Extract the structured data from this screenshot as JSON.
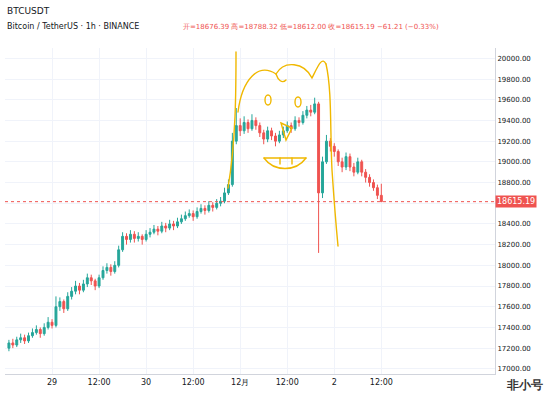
{
  "chart_data": {
    "type": "candlestick",
    "symbol": "BTCUSDT",
    "title": "Bitcoin / TetherUS · 1h · BINANCE",
    "subtitle": "开=18676.39 高=18788.32 低=18612.00 收=18615.19 −61.21 (−0.33%)",
    "watermark": "非小号",
    "categories": [
      null,
      null,
      null,
      null,
      null,
      null,
      null,
      null,
      null,
      null,
      null,
      "29",
      null,
      null,
      null,
      null,
      null,
      null,
      null,
      null,
      null,
      null,
      null,
      "12:00",
      null,
      null,
      null,
      null,
      null,
      null,
      null,
      null,
      null,
      null,
      null,
      "30",
      null,
      null,
      null,
      null,
      null,
      null,
      null,
      null,
      null,
      null,
      null,
      "12:00",
      null,
      null,
      null,
      null,
      null,
      null,
      null,
      null,
      null,
      null,
      null,
      "12月",
      null,
      null,
      null,
      null,
      null,
      null,
      null,
      null,
      null,
      null,
      null,
      "12:00",
      null,
      null,
      null,
      null,
      null,
      null,
      null,
      null,
      null,
      null,
      null,
      "2",
      null,
      null,
      null,
      null,
      null,
      null,
      null,
      null,
      null,
      null,
      null,
      "12:00"
    ],
    "open": [
      17200,
      17250,
      17230,
      17280,
      17300,
      17270,
      17320,
      17350,
      17380,
      17340,
      17400,
      17450,
      17420,
      17600,
      17650,
      17580,
      17700,
      17750,
      17800,
      17760,
      17820,
      17880,
      17850,
      17800,
      17880,
      17950,
      17980,
      17940,
      18000,
      18150,
      18280,
      18250,
      18300,
      18260,
      18280,
      18250,
      18300,
      18320,
      18350,
      18330,
      18380,
      18360,
      18400,
      18380,
      18420,
      18450,
      18480,
      18500,
      18470,
      18520,
      18550,
      18530,
      18580,
      18560,
      18600,
      18620,
      18700,
      18780,
      19200,
      19350,
      19300,
      19380,
      19320,
      19400,
      19350,
      19280,
      19220,
      19300,
      19250,
      19200,
      19260,
      19300,
      19350,
      19320,
      19400,
      19380,
      19450,
      19500,
      19480,
      19560,
      18700,
      19000,
      19200,
      19150,
      19100,
      19000,
      18950,
      19050,
      18950,
      18900,
      19000,
      18900,
      18850,
      18800,
      18750,
      18676.39
    ],
    "high": [
      17280,
      17290,
      17310,
      17340,
      17330,
      17350,
      17390,
      17420,
      17400,
      17440,
      17500,
      17480,
      17700,
      17690,
      17670,
      17740,
      17790,
      17850,
      17830,
      17860,
      17920,
      17910,
      17870,
      17910,
      17990,
      18020,
      18010,
      18040,
      18190,
      18320,
      18310,
      18340,
      18330,
      18320,
      18300,
      18340,
      18360,
      18390,
      18380,
      18420,
      18410,
      18440,
      18430,
      18460,
      18490,
      18520,
      18540,
      18530,
      18560,
      18590,
      18580,
      18620,
      18610,
      18640,
      18660,
      18750,
      18830,
      19280,
      19520,
      19420,
      19440,
      19410,
      19460,
      19430,
      19380,
      19310,
      19340,
      19330,
      19280,
      19300,
      19340,
      19390,
      19380,
      19440,
      19430,
      19490,
      19540,
      19550,
      19620,
      19580,
      19050,
      19260,
      19230,
      19180,
      19120,
      19040,
      19090,
      19080,
      18990,
      19040,
      19020,
      18930,
      18880,
      18830,
      18780,
      18788.32
    ],
    "low": [
      17170,
      17200,
      17210,
      17250,
      17240,
      17250,
      17300,
      17330,
      17300,
      17320,
      17380,
      17390,
      17400,
      17560,
      17540,
      17560,
      17670,
      17720,
      17720,
      17740,
      17790,
      17810,
      17760,
      17780,
      17860,
      17920,
      17900,
      17920,
      17980,
      18130,
      18200,
      18220,
      18220,
      18230,
      18200,
      18230,
      18270,
      18300,
      18290,
      18310,
      18320,
      18340,
      18340,
      18360,
      18400,
      18430,
      18460,
      18430,
      18450,
      18500,
      18490,
      18510,
      18520,
      18540,
      18570,
      18600,
      18680,
      18760,
      19170,
      19250,
      19270,
      19280,
      19300,
      19310,
      19240,
      19170,
      19190,
      19210,
      19150,
      19180,
      19230,
      19280,
      19280,
      19300,
      19340,
      19360,
      19420,
      19440,
      19460,
      18120,
      18650,
      18980,
      19100,
      19050,
      18960,
      18900,
      18920,
      18910,
      18860,
      18880,
      18860,
      18800,
      18760,
      18720,
      18640,
      18612.0
    ],
    "close": [
      17250,
      17230,
      17280,
      17300,
      17270,
      17320,
      17350,
      17380,
      17340,
      17400,
      17450,
      17420,
      17600,
      17650,
      17580,
      17700,
      17750,
      17800,
      17760,
      17820,
      17880,
      17850,
      17800,
      17880,
      17950,
      17980,
      17940,
      18000,
      18150,
      18280,
      18250,
      18300,
      18260,
      18280,
      18250,
      18300,
      18320,
      18350,
      18330,
      18380,
      18360,
      18400,
      18380,
      18420,
      18450,
      18480,
      18500,
      18470,
      18520,
      18550,
      18530,
      18580,
      18560,
      18600,
      18620,
      18700,
      18780,
      19200,
      19350,
      19300,
      19380,
      19320,
      19400,
      19350,
      19280,
      19220,
      19300,
      19250,
      19200,
      19260,
      19300,
      19350,
      19320,
      19400,
      19380,
      19450,
      19500,
      19480,
      19560,
      18700,
      19000,
      19200,
      19150,
      19100,
      19000,
      18950,
      19050,
      18950,
      18900,
      19000,
      18900,
      18850,
      18800,
      18750,
      18676.39,
      18615.19
    ],
    "up_color": "#26a69a",
    "down_color": "#ef5350",
    "ylim": [
      16950,
      20100
    ],
    "yticks": [
      {
        "value": 17000,
        "label": "17000.00"
      },
      {
        "value": 17200,
        "label": "17200.00"
      },
      {
        "value": 17400,
        "label": "17400.00"
      },
      {
        "value": 17600,
        "label": "17600.00"
      },
      {
        "value": 17800,
        "label": "17800.00"
      },
      {
        "value": 18000,
        "label": "18000.00"
      },
      {
        "value": 18200,
        "label": "18200.00"
      },
      {
        "value": 18400,
        "label": "18400.00"
      },
      {
        "value": 18600,
        "label": "18600.00"
      },
      {
        "value": 18800,
        "label": "18800.00"
      },
      {
        "value": 19000,
        "label": "19000.00"
      },
      {
        "value": 19200,
        "label": "19200.00"
      },
      {
        "value": 19400,
        "label": "19400.00"
      },
      {
        "value": 19600,
        "label": "19600.00"
      },
      {
        "value": 19800,
        "label": "19800.00"
      },
      {
        "value": 20000,
        "label": "20000.00"
      }
    ],
    "grid": true
  }
}
